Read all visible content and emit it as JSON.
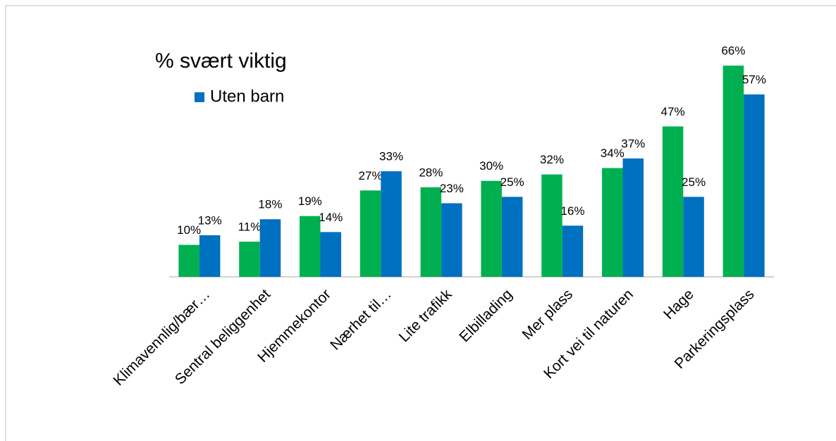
{
  "chart_data": {
    "type": "bar",
    "title": "% svært viktig",
    "categories": [
      "Klimavennlig/bær…",
      "Sentral beliggenhet",
      "Hjemmekontor",
      "Nærhet til…",
      "Lite trafikk",
      "Elbillading",
      "Mer plass",
      "Kort vei til naturen",
      "Hage",
      "Parkeringsplass"
    ],
    "series": [
      {
        "color": "#00b050",
        "values": [
          10,
          11,
          19,
          27,
          28,
          30,
          32,
          34,
          47,
          66
        ],
        "value_labels": [
          "10%",
          "11%",
          "19%",
          "27%",
          "28%",
          "30%",
          "32%",
          "34%",
          "47%",
          "66%"
        ]
      },
      {
        "name": "Uten barn",
        "color": "#0070c0",
        "values": [
          13,
          18,
          14,
          33,
          23,
          25,
          16,
          37,
          25,
          57
        ],
        "value_labels": [
          "13%",
          "18%",
          "14%",
          "33%",
          "23%",
          "25%",
          "16%",
          "37%",
          "25%",
          "57%"
        ]
      }
    ],
    "ylim": [
      0,
      70
    ]
  }
}
